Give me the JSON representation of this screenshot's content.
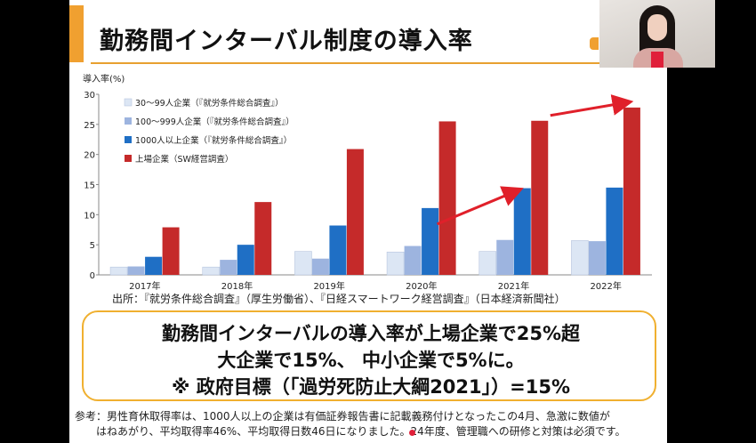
{
  "slide": {
    "title": "勤務間インターバル制度の導入率",
    "source": "出所：『就労条件総合調査』（厚生労働省）、『日経スマートワーク経営調査』（日本経済新聞社）",
    "callout": {
      "line1": "勤務間インターバルの導入率が上場企業で25%超",
      "line2": "大企業で15%、 中小企業で5%に。",
      "line3": "※ 政府目標（「過労死防止大綱2021」）=15%"
    },
    "note": {
      "line1": "参考：男性育休取得率は、1000人以上の企業は有価証券報告書に記載義務付けとなったこの4月、急激に数値が",
      "line2": "はねあがり、平均取得率46%、平均取得日数46日になりました。24年度、管理職への研修と対策は必須です。"
    }
  },
  "colors": {
    "series1": "#dce6f4",
    "series2": "#9db4df",
    "series3": "#1f6fc5",
    "series4": "#c52a2a",
    "arrow": "#e0202a",
    "accent": "#f0a030"
  },
  "chart_data": {
    "type": "bar",
    "ylabel": "導入率(%)",
    "ylim": [
      0,
      30
    ],
    "yticks": [
      0,
      5,
      10,
      15,
      20,
      25,
      30
    ],
    "categories": [
      "2017年",
      "2018年",
      "2019年",
      "2020年",
      "2021年",
      "2022年"
    ],
    "series": [
      {
        "name": "30～99人企業（『就労条件総合調査』）",
        "values": [
          1.3,
          1.3,
          3.9,
          3.8,
          3.9,
          5.7
        ]
      },
      {
        "name": "100～999人企業（『就労条件総合調査』）",
        "values": [
          1.4,
          2.5,
          2.7,
          4.8,
          5.8,
          5.6
        ]
      },
      {
        "name": "1000人以上企業（『就労条件総合調査』）",
        "values": [
          3.0,
          5.0,
          8.2,
          11.1,
          14.4,
          14.5
        ]
      },
      {
        "name": "上場企業（SW経営調査）",
        "values": [
          7.9,
          12.1,
          20.9,
          25.5,
          25.6,
          27.8
        ]
      }
    ],
    "legend_position": "top-left",
    "grid": false
  }
}
